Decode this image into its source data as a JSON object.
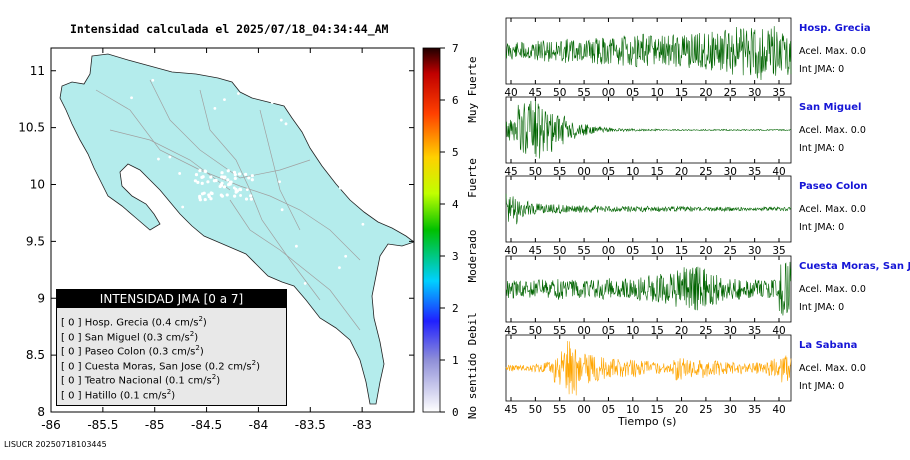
{
  "title": "Intensidad calculada el 2025/07/18_04:34:44_AM",
  "footer_id": "LISUCR 20250718103445",
  "legend": {
    "header": "INTENSIDAD JMA [0 a 7]",
    "rows": [
      {
        "int": "[ 0 ]",
        "name": "Hosp. Grecia",
        "value": "(0.4 cm/s",
        "exp": "2",
        "close": ")"
      },
      {
        "int": "[ 0 ]",
        "name": "San Miguel",
        "value": "(0.3 cm/s",
        "exp": "2",
        "close": ")"
      },
      {
        "int": "[ 0 ]",
        "name": "Paseo Colon",
        "value": "(0.3 cm/s",
        "exp": "2",
        "close": ")"
      },
      {
        "int": "[ 0 ]",
        "name": "Cuesta Moras, San Jose",
        "value": "(0.2 cm/s",
        "exp": "2",
        "close": ")"
      },
      {
        "int": "[ 0 ]",
        "name": "Teatro Nacional",
        "value": "(0.1 cm/s",
        "exp": "2",
        "close": ")"
      },
      {
        "int": "[ 0 ]",
        "name": "Hatillo",
        "value": "(0.1 cm/s",
        "exp": "2",
        "close": ")"
      }
    ]
  },
  "colorbar": {
    "ticks": [
      "0",
      "1",
      "2",
      "3",
      "4",
      "5",
      "6",
      "7"
    ],
    "categories": [
      "No sentido",
      "Debil",
      "Moderado",
      "Fuerte",
      "Muy Fuerte"
    ]
  },
  "stations": [
    {
      "name": "Hosp. Grecia",
      "acel": "Acel. Max. 0.0",
      "int": "Int JMA: 0",
      "color": "#006400",
      "ticks": [
        "40",
        "45",
        "50",
        "55",
        "00",
        "05",
        "10",
        "15",
        "20",
        "25",
        "30",
        "35"
      ],
      "env": [
        0.3,
        0.3,
        0.35,
        0.35,
        0.35,
        0.4,
        0.4,
        0.45,
        0.45,
        0.5,
        0.5,
        0.55,
        0.5,
        0.5,
        0.55,
        0.6,
        0.6,
        0.65,
        0.7,
        0.8,
        0.9,
        1.0,
        0.9,
        0.8
      ]
    },
    {
      "name": "San Miguel",
      "acel": "Acel. Max. 0.0",
      "int": "Int JMA: 0",
      "color": "#006400",
      "ticks": [
        "45",
        "50",
        "55",
        "00",
        "05",
        "10",
        "15",
        "20",
        "25",
        "30",
        "35",
        "40"
      ],
      "env": [
        0.35,
        0.9,
        1.0,
        0.8,
        0.5,
        0.3,
        0.2,
        0.12,
        0.08,
        0.05,
        0.04,
        0.03,
        0.03,
        0.02,
        0.02,
        0.02,
        0.02,
        0.02,
        0.02,
        0.02,
        0.02,
        0.02,
        0.02,
        0.02
      ]
    },
    {
      "name": "Paseo Colon",
      "acel": "Acel. Max. 0.0",
      "int": "Int JMA: 0",
      "color": "#006400",
      "ticks": [
        "40",
        "45",
        "50",
        "55",
        "00",
        "05",
        "10",
        "15",
        "20",
        "25",
        "30",
        "35"
      ],
      "env": [
        0.5,
        0.25,
        0.2,
        0.15,
        0.15,
        0.12,
        0.12,
        0.12,
        0.1,
        0.1,
        0.1,
        0.1,
        0.09,
        0.08,
        0.08,
        0.08,
        0.07,
        0.07,
        0.07,
        0.06,
        0.06,
        0.06,
        0.06,
        0.06
      ]
    },
    {
      "name": "Cuesta Moras, San Jose",
      "acel": "Acel. Max. 0.0",
      "int": "Int JMA: 0",
      "color": "#006400",
      "ticks": [
        "45",
        "50",
        "55",
        "00",
        "05",
        "10",
        "15",
        "20",
        "25",
        "30",
        "35",
        "40"
      ],
      "env": [
        0.3,
        0.25,
        0.3,
        0.3,
        0.35,
        0.3,
        0.3,
        0.3,
        0.35,
        0.3,
        0.35,
        0.4,
        0.45,
        0.5,
        0.6,
        0.7,
        0.8,
        0.5,
        0.4,
        0.35,
        0.3,
        0.3,
        0.3,
        0.9
      ]
    },
    {
      "name": "La Sabana",
      "acel": "Acel. Max. 0.0",
      "int": "Int JMA: 0",
      "color": "#ffa500",
      "ticks": [
        "45",
        "50",
        "55",
        "00",
        "05",
        "10",
        "15",
        "20",
        "25",
        "30",
        "35",
        "40"
      ],
      "env": [
        0.1,
        0.1,
        0.15,
        0.2,
        0.6,
        0.9,
        0.5,
        0.45,
        0.35,
        0.3,
        0.3,
        0.25,
        0.2,
        0.15,
        0.4,
        0.3,
        0.35,
        0.25,
        0.2,
        0.2,
        0.15,
        0.2,
        0.3,
        0.5
      ]
    }
  ],
  "time_label": "Tiempo (s)",
  "chart_data": {
    "type": "map",
    "title": "Intensidad calculada el 2025/07/18_04:34:44_AM",
    "xlabel": "",
    "ylabel": "",
    "xlim": [
      -86,
      -82.5
    ],
    "ylim": [
      8,
      11.2
    ],
    "x_ticks": [
      "-86",
      "-85.5",
      "-85",
      "-84.5",
      "-84",
      "-83.5",
      "-83"
    ],
    "y_ticks": [
      "8",
      "8.5",
      "9",
      "9.5",
      "10",
      "10.5",
      "11"
    ],
    "y_tick_values": [
      8,
      8.5,
      9,
      9.5,
      10,
      10.5,
      11
    ],
    "x_tick_values": [
      -86,
      -85.5,
      -85,
      -84.5,
      -84,
      -83.5,
      -83
    ],
    "intensity_range": [
      0,
      7
    ],
    "station_intensities": [
      {
        "name": "Hosp. Grecia",
        "intensity": 0,
        "pga_cm_s2": 0.4
      },
      {
        "name": "San Miguel",
        "intensity": 0,
        "pga_cm_s2": 0.3
      },
      {
        "name": "Paseo Colon",
        "intensity": 0,
        "pga_cm_s2": 0.3
      },
      {
        "name": "Cuesta Moras, San Jose",
        "intensity": 0,
        "pga_cm_s2": 0.2
      },
      {
        "name": "Teatro Nacional",
        "intensity": 0,
        "pga_cm_s2": 0.1
      },
      {
        "name": "Hatillo",
        "intensity": 0,
        "pga_cm_s2": 0.1
      }
    ]
  }
}
